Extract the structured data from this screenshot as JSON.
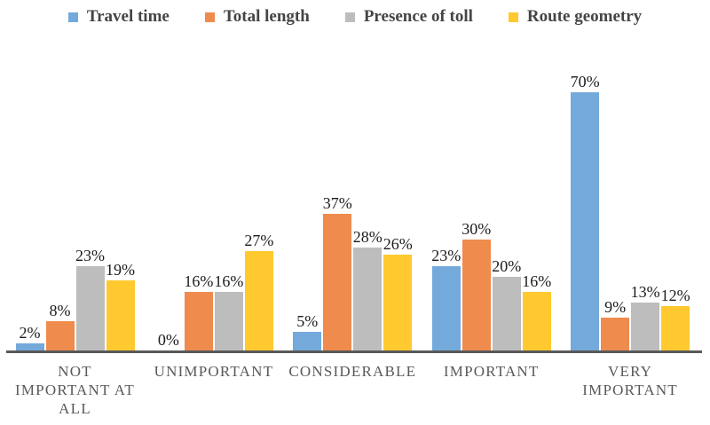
{
  "chart_data": {
    "type": "bar",
    "title": "",
    "xlabel": "",
    "ylabel": "",
    "ylim": [
      0,
      75
    ],
    "grid": false,
    "legend_position": "top",
    "background": "#FFFFFF",
    "axis_color": "#595959",
    "value_label_color": "#1C1C1C",
    "category_label_color": "#595959",
    "legend_text_color": "#454545",
    "value_label_suffix": "%",
    "categories": [
      "NOT IMPORTANT AT ALL",
      "UNIMPORTANT",
      "CONSIDERABLE",
      "IMPORTANT",
      "VERY IMPORTANT"
    ],
    "category_display_lines": [
      [
        "NOT",
        "IMPORTANT AT",
        "ALL"
      ],
      [
        "UNIMPORTANT"
      ],
      [
        "CONSIDERABLE"
      ],
      [
        "IMPORTANT"
      ],
      [
        "VERY",
        "IMPORTANT"
      ]
    ],
    "series": [
      {
        "name": "Travel time",
        "color": "#74A9DB",
        "values": [
          2,
          0,
          5,
          23,
          70
        ]
      },
      {
        "name": "Total length",
        "color": "#EE8B4D",
        "values": [
          8,
          16,
          37,
          30,
          9
        ]
      },
      {
        "name": "Presence of toll",
        "color": "#BDBDBD",
        "values": [
          23,
          16,
          28,
          20,
          13
        ]
      },
      {
        "name": "Route geometry",
        "color": "#FFC92F",
        "values": [
          19,
          27,
          26,
          16,
          12
        ]
      }
    ],
    "value_display": [
      [
        "2%",
        "0%",
        "5%",
        "23%",
        "70%"
      ],
      [
        "8%",
        "16%",
        "37%",
        "30%",
        "9%"
      ],
      [
        "23%",
        "16%",
        "28%",
        "20%",
        "13%"
      ],
      [
        "19%",
        "27%",
        "26%",
        "16%",
        "12%"
      ]
    ]
  }
}
